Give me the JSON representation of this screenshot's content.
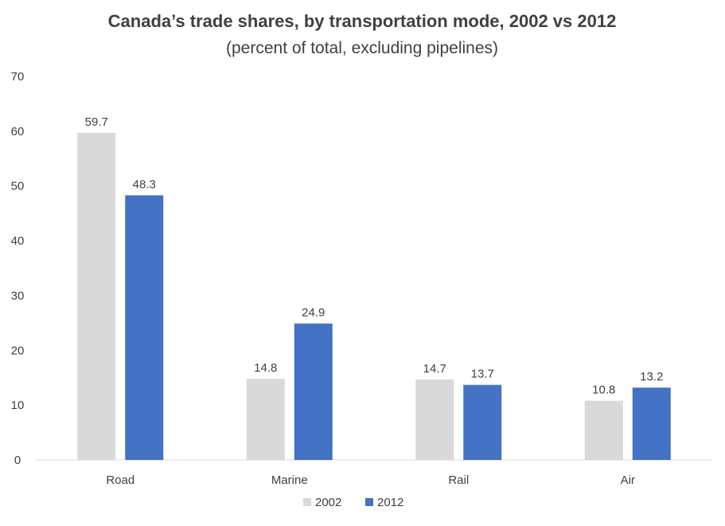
{
  "chart_data": {
    "type": "bar",
    "title": "Canada’s trade shares, by transportation mode, 2002 vs 2012",
    "subtitle": "(percent of total, excluding pipelines)",
    "xlabel": "",
    "ylabel": "",
    "categories": [
      "Road",
      "Marine",
      "Rail",
      "Air"
    ],
    "series": [
      {
        "name": "2002",
        "color": "#d9d9d9",
        "values": [
          59.7,
          14.8,
          14.7,
          10.8
        ]
      },
      {
        "name": "2012",
        "color": "#4472c4",
        "values": [
          48.3,
          24.9,
          13.7,
          13.2
        ]
      }
    ],
    "ylim": [
      0,
      70
    ],
    "yticks": [
      "0",
      "10",
      "20",
      "30",
      "40",
      "50",
      "60",
      "70"
    ],
    "grid": false,
    "legend_position": "bottom-center"
  },
  "colors": {
    "text": "#404040",
    "axis_line": "#d9d9d9"
  }
}
